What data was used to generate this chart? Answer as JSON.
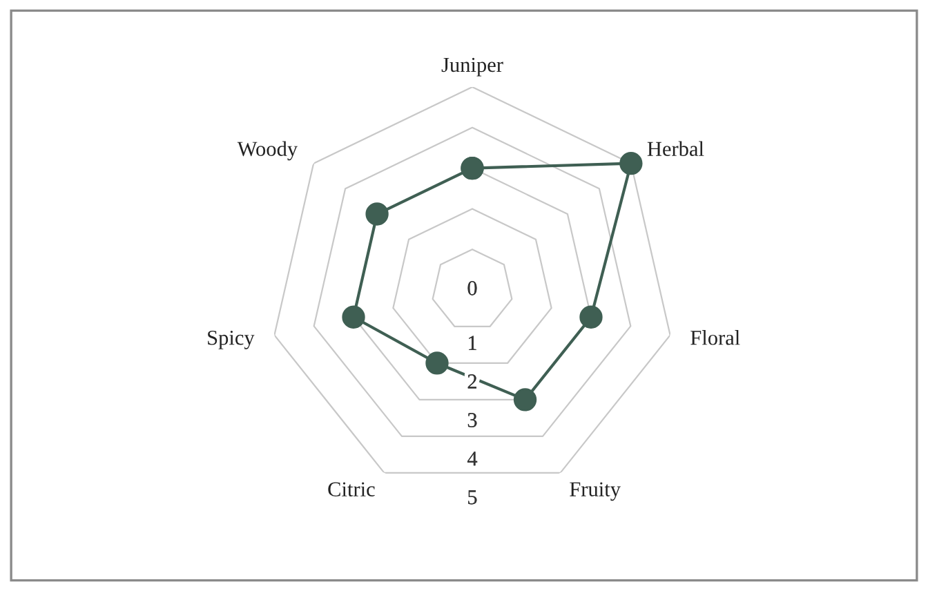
{
  "chart_data": {
    "type": "radar",
    "categories": [
      "Juniper",
      "Herbal",
      "Floral",
      "Fruity",
      "Citric",
      "Spicy",
      "Woody"
    ],
    "series": [
      {
        "color": "#3f5f53",
        "values": [
          3,
          5,
          3,
          3,
          2,
          3,
          3
        ]
      }
    ],
    "ylim": [
      0,
      5
    ],
    "yticks": [
      0,
      1,
      2,
      3,
      4,
      5
    ],
    "grid": true,
    "marker": "circle",
    "line_style": "solid"
  }
}
